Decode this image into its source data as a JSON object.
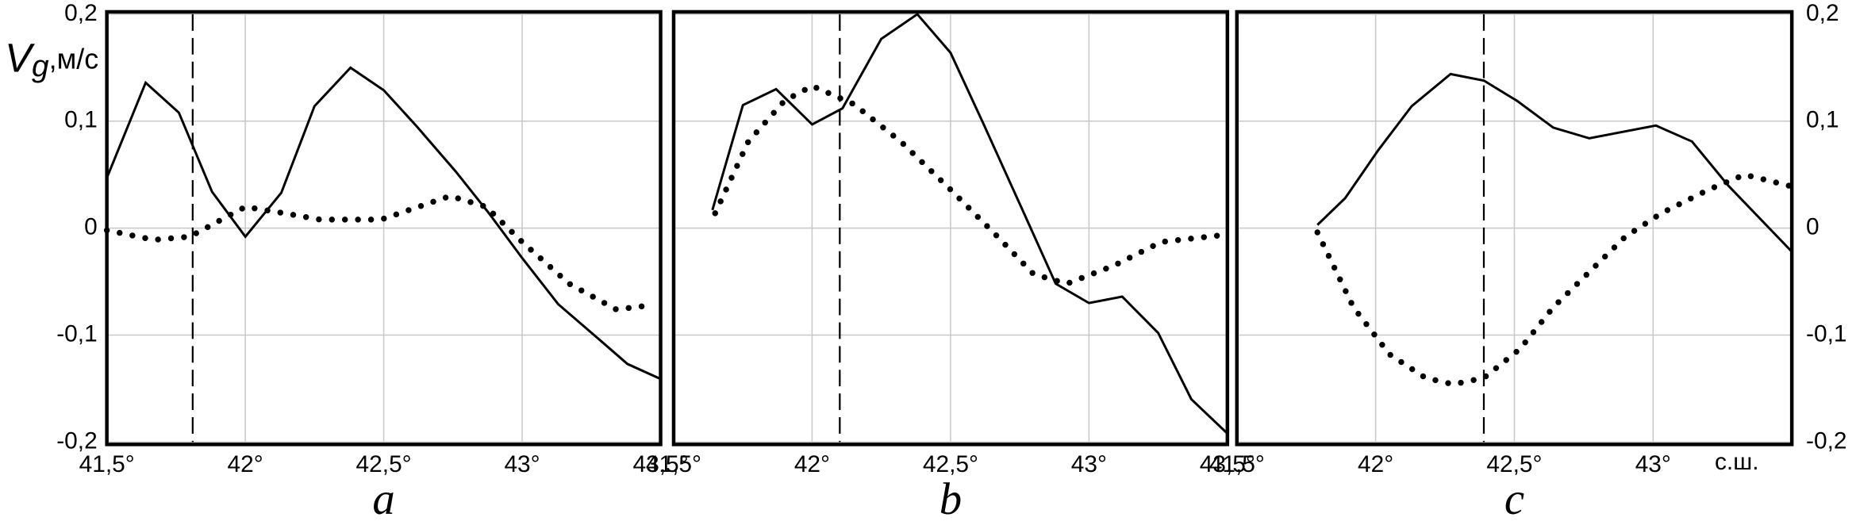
{
  "chart_data": [
    {
      "type": "line",
      "panel_label": "a",
      "y_label": {
        "main": "V",
        "sub": "g",
        "unit": ",м/с"
      },
      "y_side": "left",
      "xlim": [
        41.5,
        43.5
      ],
      "ylim": [
        -0.2,
        0.2
      ],
      "grid": true,
      "xticks": [
        {
          "value": 41.5,
          "label": "41,5°"
        },
        {
          "value": 42,
          "label": "42°"
        },
        {
          "value": 42.5,
          "label": "42,5°"
        },
        {
          "value": 43,
          "label": "43°"
        },
        {
          "value": 43.5,
          "label": "43,5°"
        }
      ],
      "yticks": [
        {
          "value": -0.2,
          "label": "-0,2"
        },
        {
          "value": -0.1,
          "label": "-0,1"
        },
        {
          "value": 0,
          "label": "0"
        },
        {
          "value": 0.1,
          "label": "0,1"
        },
        {
          "value": 0.2,
          "label": "0,2"
        }
      ],
      "marker_x": 41.81,
      "series": [
        {
          "style": "solid",
          "color": "#000000",
          "x": [
            41.5,
            41.64,
            41.76,
            41.88,
            42.0,
            42.13,
            42.25,
            42.38,
            42.5,
            42.62,
            42.76,
            42.88,
            43.0,
            43.13,
            43.26,
            43.38,
            43.5
          ],
          "values": [
            0.047,
            0.136,
            0.108,
            0.034,
            -0.008,
            0.033,
            0.114,
            0.15,
            0.129,
            0.095,
            0.053,
            0.014,
            -0.028,
            -0.071,
            -0.1,
            -0.127,
            -0.141
          ]
        },
        {
          "style": "dotted",
          "color": "#000000",
          "x": [
            41.5,
            41.67,
            41.8,
            42.0,
            42.14,
            42.27,
            42.49,
            42.74,
            42.87,
            43.0,
            43.17,
            43.34,
            43.47
          ],
          "values": [
            -0.002,
            -0.011,
            -0.008,
            0.02,
            0.014,
            0.008,
            0.008,
            0.03,
            0.02,
            -0.013,
            -0.052,
            -0.076,
            -0.072
          ]
        }
      ]
    },
    {
      "type": "line",
      "panel_label": "b",
      "y_side": "none",
      "xlim": [
        41.5,
        43.5
      ],
      "ylim": [
        -0.2,
        0.2
      ],
      "grid": true,
      "xticks": [
        {
          "value": 41.5,
          "label": "41,5°"
        },
        {
          "value": 42,
          "label": "42°"
        },
        {
          "value": 42.5,
          "label": "42,5°"
        },
        {
          "value": 43,
          "label": "43°"
        },
        {
          "value": 43.5,
          "label": "43,5°"
        }
      ],
      "yticks": [
        -0.2,
        -0.1,
        0,
        0.1,
        0.2
      ],
      "marker_x": 42.1,
      "series": [
        {
          "style": "solid",
          "color": "#000000",
          "x": [
            41.64,
            41.75,
            41.87,
            42.0,
            42.11,
            42.25,
            42.38,
            42.5,
            42.62,
            42.76,
            42.88,
            43.0,
            43.12,
            43.25,
            43.37,
            43.5
          ],
          "values": [
            0.017,
            0.115,
            0.13,
            0.097,
            0.112,
            0.177,
            0.2,
            0.164,
            0.097,
            0.017,
            -0.052,
            -0.07,
            -0.064,
            -0.098,
            -0.16,
            -0.192
          ]
        },
        {
          "style": "dotted",
          "color": "#000000",
          "x": [
            41.65,
            41.77,
            41.9,
            42.0,
            42.15,
            42.32,
            42.5,
            42.67,
            42.8,
            42.92,
            43.09,
            43.26,
            43.5
          ],
          "values": [
            0.014,
            0.081,
            0.119,
            0.133,
            0.116,
            0.081,
            0.036,
            -0.008,
            -0.043,
            -0.052,
            -0.035,
            -0.013,
            -0.006
          ]
        }
      ]
    },
    {
      "type": "line",
      "panel_label": "c",
      "y_side": "right",
      "x_label": "с.ш.",
      "xlim": [
        41.5,
        43.5
      ],
      "ylim": [
        -0.2,
        0.2
      ],
      "grid": true,
      "xticks": [
        {
          "value": 41.5,
          "label": "41,5°"
        },
        {
          "value": 42,
          "label": "42°"
        },
        {
          "value": 42.5,
          "label": "42,5°"
        },
        {
          "value": 43,
          "label": "43°"
        }
      ],
      "yticks": [
        {
          "value": -0.2,
          "label": "-0,2"
        },
        {
          "value": -0.1,
          "label": "-0,1"
        },
        {
          "value": 0,
          "label": "0"
        },
        {
          "value": 0.1,
          "label": "0,1"
        },
        {
          "value": 0.2,
          "label": "0,2"
        }
      ],
      "marker_x": 42.39,
      "series": [
        {
          "style": "solid",
          "color": "#000000",
          "x": [
            41.79,
            41.89,
            42.01,
            42.13,
            42.27,
            42.39,
            42.51,
            42.64,
            42.77,
            43.01,
            43.14,
            43.27,
            43.5
          ],
          "values": [
            0.003,
            0.028,
            0.073,
            0.114,
            0.144,
            0.138,
            0.119,
            0.094,
            0.084,
            0.096,
            0.081,
            0.04,
            -0.022
          ]
        },
        {
          "style": "dotted",
          "color": "#000000",
          "x": [
            41.79,
            41.92,
            42.05,
            42.18,
            42.28,
            42.39,
            42.52,
            42.64,
            42.77,
            42.9,
            43.03,
            43.2,
            43.33,
            43.5
          ],
          "values": [
            -0.004,
            -0.074,
            -0.118,
            -0.14,
            -0.146,
            -0.14,
            -0.113,
            -0.074,
            -0.041,
            -0.008,
            0.014,
            0.036,
            0.05,
            0.039
          ]
        }
      ]
    }
  ]
}
